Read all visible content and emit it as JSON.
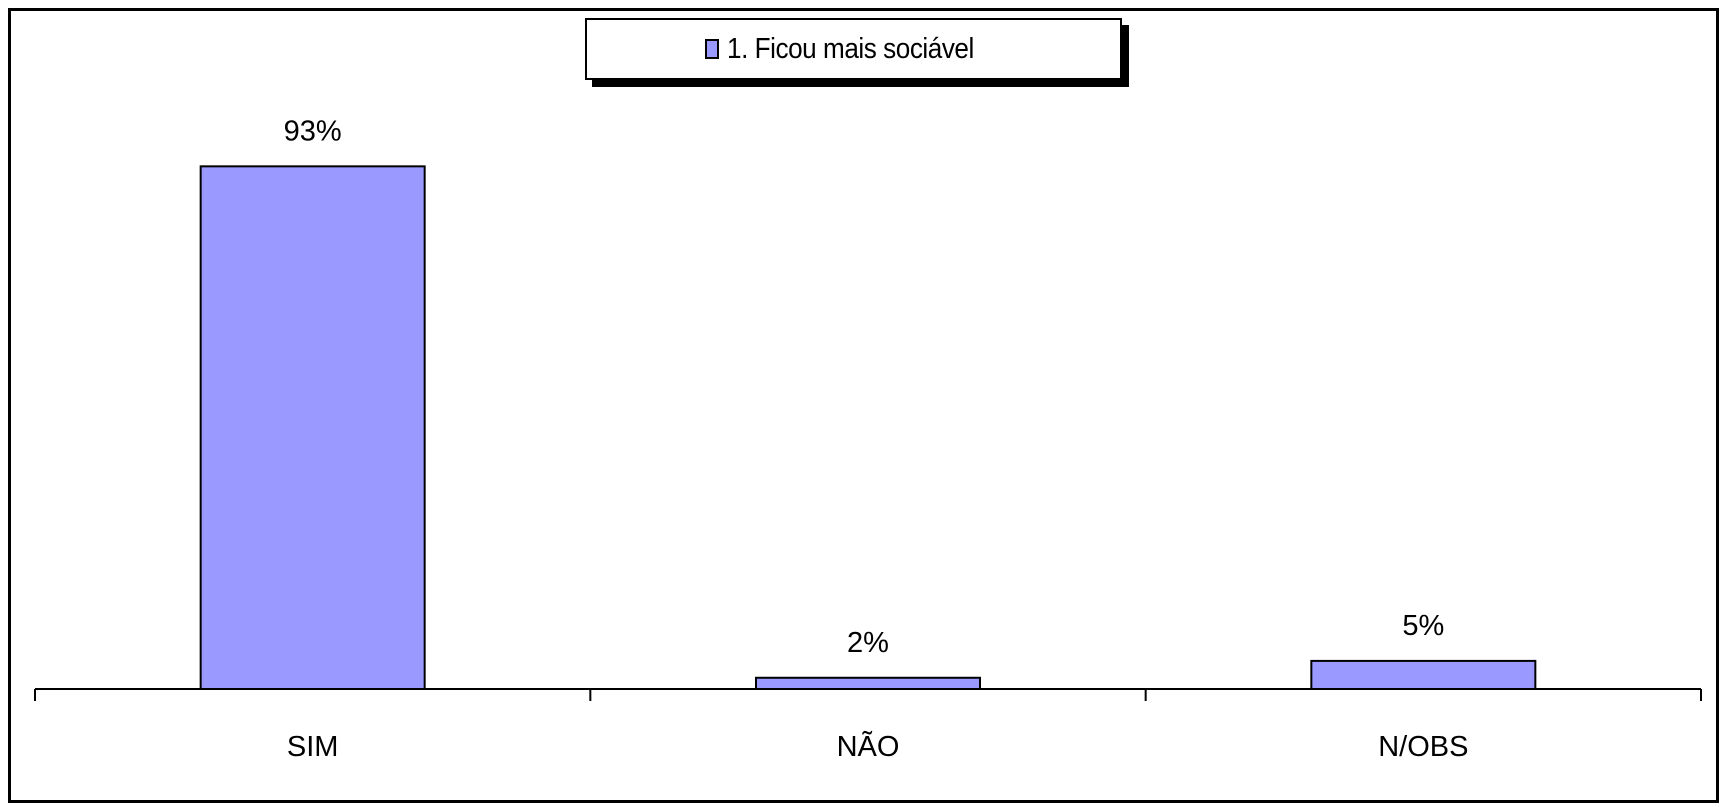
{
  "chart_data": {
    "type": "bar",
    "categories": [
      "SIM",
      "NÃO",
      "N/OBS"
    ],
    "series": [
      {
        "name": "1. Ficou mais sociável",
        "values": [
          93,
          2,
          5
        ],
        "labels": [
          "93%",
          "2%",
          "5%"
        ]
      }
    ],
    "ylim": [
      0,
      100
    ],
    "grid": false,
    "legend_position": "top-center",
    "bar_color": "#9999FF",
    "title": "",
    "xlabel": "",
    "ylabel": ""
  }
}
